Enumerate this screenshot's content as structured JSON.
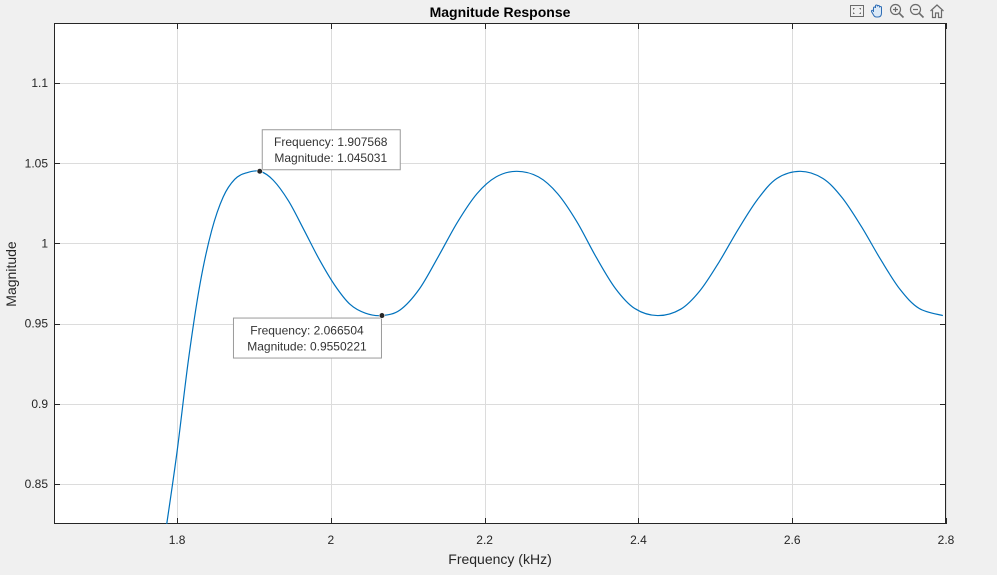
{
  "toolbar": {
    "buttons": [
      {
        "name": "export-icon",
        "label": "Export"
      },
      {
        "name": "pan-icon",
        "label": "Pan"
      },
      {
        "name": "zoom-in-icon",
        "label": "Zoom In"
      },
      {
        "name": "zoom-out-icon",
        "label": "Zoom Out"
      },
      {
        "name": "home-icon",
        "label": "Restore View"
      }
    ]
  },
  "chart_data": {
    "type": "line",
    "title": "Magnitude Response",
    "xlabel": "Frequency (kHz)",
    "ylabel": "Magnitude",
    "xlim": [
      1.64,
      2.8
    ],
    "ylim": [
      0.825,
      1.1375
    ],
    "xticks": [
      1.8,
      2,
      2.2,
      2.4,
      2.6,
      2.8
    ],
    "xtick_labels": [
      "1.8",
      "2",
      "2.2",
      "2.4",
      "2.6",
      "2.8"
    ],
    "yticks": [
      0.85,
      0.9,
      0.95,
      1,
      1.05,
      1.1
    ],
    "ytick_labels": [
      "0.85",
      "0.9",
      "0.95",
      "1",
      "1.05",
      "1.1"
    ],
    "grid": true,
    "line_color": "#0072bd",
    "series": [
      {
        "x": [
          1.786,
          1.8,
          1.815,
          1.83,
          1.845,
          1.86,
          1.875,
          1.89,
          1.9076,
          1.925,
          1.945,
          1.965,
          1.985,
          2.005,
          2.025,
          2.045,
          2.0665,
          2.09,
          2.115,
          2.14,
          2.165,
          2.19,
          2.215,
          2.2417,
          2.27,
          2.295,
          2.32,
          2.345,
          2.37,
          2.395,
          2.4247,
          2.455,
          2.48,
          2.505,
          2.53,
          2.555,
          2.58,
          2.6103,
          2.64,
          2.665,
          2.69,
          2.715,
          2.74,
          2.765,
          2.7959
        ],
        "y": [
          0.823,
          0.87,
          0.928,
          0.975,
          1.008,
          1.029,
          1.04,
          1.044,
          1.045031,
          1.0395,
          1.0265,
          1.0085,
          0.99,
          0.974,
          0.962,
          0.9565,
          0.9550221,
          0.9585,
          0.9715,
          0.992,
          1.0135,
          1.031,
          1.0415,
          1.045,
          1.0415,
          1.031,
          1.0135,
          0.9915,
          0.972,
          0.9595,
          0.955,
          0.959,
          0.9705,
          0.9885,
          1.009,
          1.0275,
          1.0405,
          1.045,
          1.0405,
          1.0285,
          1.0105,
          0.99,
          0.9715,
          0.9595,
          0.955
        ]
      }
    ],
    "datatips": [
      {
        "marker_x": 1.907568,
        "marker_y": 1.045031,
        "line1": "Frequency: 1.907568",
        "line2": "Magnitude: 1.045031",
        "side": "upper-right"
      },
      {
        "marker_x": 2.066504,
        "marker_y": 0.9550221,
        "line1": "Frequency: 2.066504",
        "line2": "Magnitude: 0.9550221",
        "side": "lower-left"
      }
    ]
  }
}
